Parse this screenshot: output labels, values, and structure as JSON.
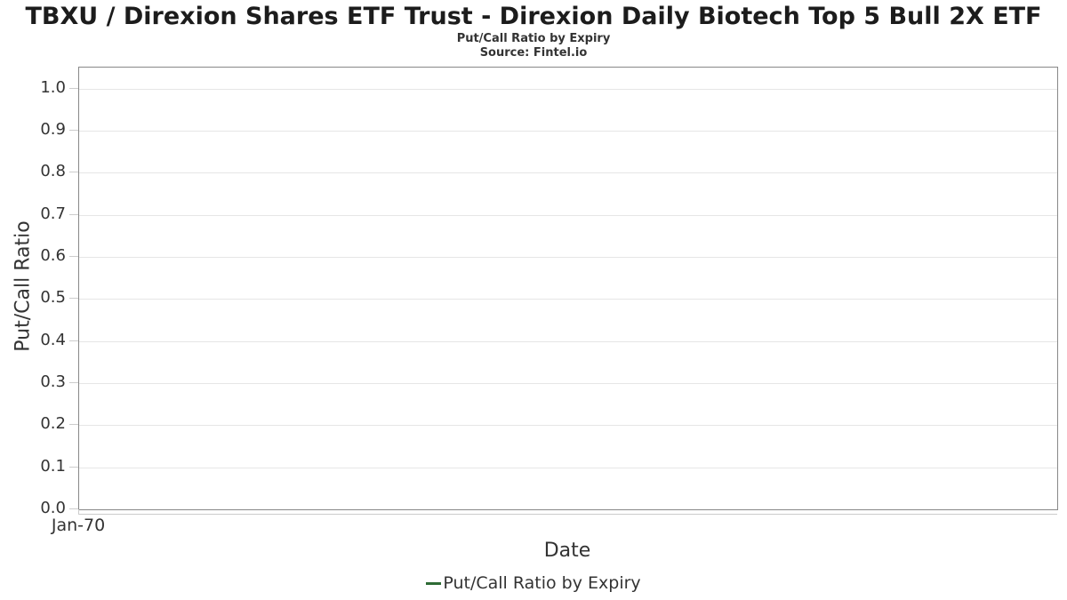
{
  "header": {
    "title": "TBXU / Direxion Shares ETF Trust - Direxion Daily Biotech Top 5 Bull 2X ETF",
    "subtitle": "Put/Call Ratio by Expiry",
    "source": "Source: Fintel.io"
  },
  "chart_data": {
    "type": "line",
    "title": "TBXU / Direxion Shares ETF Trust - Direxion Daily Biotech Top 5 Bull 2X ETF",
    "subtitle": "Put/Call Ratio by Expiry",
    "source": "Source: Fintel.io",
    "xlabel": "Date",
    "ylabel": "Put/Call Ratio",
    "ylim": [
      0.0,
      1.05
    ],
    "yticks": [
      "0.0",
      "0.1",
      "0.2",
      "0.3",
      "0.4",
      "0.5",
      "0.6",
      "0.7",
      "0.8",
      "0.9",
      "1.0"
    ],
    "xticks": [
      "Jan-70"
    ],
    "grid": "horizontal-only",
    "legend_position": "bottom-center",
    "series": [
      {
        "name": "Put/Call Ratio by Expiry",
        "color": "#2e6b35",
        "x": [],
        "values": []
      }
    ],
    "note": "no data points plotted - empty plot area"
  },
  "legend": {
    "items": [
      {
        "label": "Put/Call Ratio by Expiry",
        "color": "#2e6b35"
      }
    ]
  },
  "colors": {
    "background": "#ffffff",
    "plot_border": "#888888",
    "gridline": "#e6e6e6",
    "tick": "#cccccc",
    "text": "#333333",
    "title_text": "#1c1c1c",
    "series_green": "#2e6b35"
  }
}
